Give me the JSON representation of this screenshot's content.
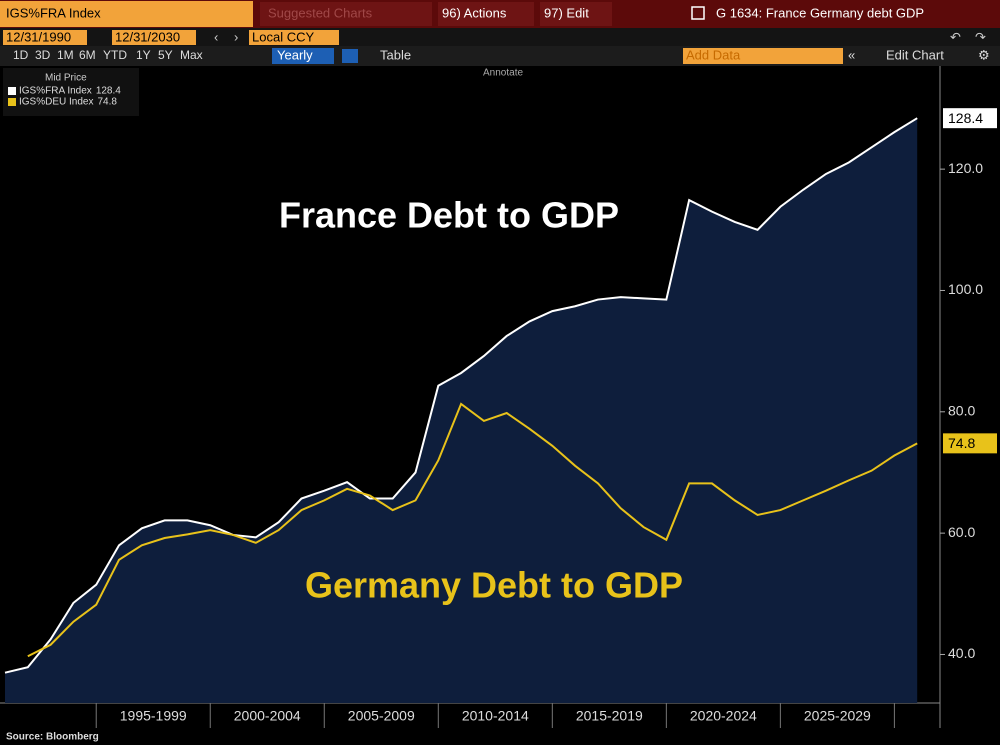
{
  "ui": {
    "security": "IGS%FRA Index",
    "suggested": "Suggested Charts",
    "actions": "96) Actions",
    "edit": "97) Edit",
    "chart_name": "G 1634: France Germany debt GDP",
    "start_date": "12/31/1990",
    "end_date": "12/31/2030",
    "currency": "Local CCY",
    "periods": [
      "1D",
      "3D",
      "1M",
      "6M",
      "YTD",
      "1Y",
      "5Y",
      "Max"
    ],
    "frequency": "Yearly",
    "table": "Table",
    "add_data": "Add Data",
    "edit_chart": "Edit Chart",
    "annotate": "Annotate"
  },
  "chart_data": {
    "type": "line",
    "legend_title": "Mid Price",
    "annotations": [
      "France Debt to GDP",
      "Germany Debt to GDP"
    ],
    "source": "Source: Bloomberg",
    "x": [
      1990,
      1991,
      1992,
      1993,
      1994,
      1995,
      1996,
      1997,
      1998,
      1999,
      2000,
      2001,
      2002,
      2003,
      2004,
      2005,
      2006,
      2007,
      2008,
      2009,
      2010,
      2011,
      2012,
      2013,
      2014,
      2015,
      2016,
      2017,
      2018,
      2019,
      2020,
      2021,
      2022,
      2023,
      2024,
      2025,
      2026,
      2027,
      2028,
      2029,
      2030
    ],
    "xlim": [
      1990,
      2031
    ],
    "xticks": [
      {
        "value": 1996.5,
        "label": "1995-1999"
      },
      {
        "value": 2001.5,
        "label": "2000-2004"
      },
      {
        "value": 2006.5,
        "label": "2005-2009"
      },
      {
        "value": 2011.5,
        "label": "2010-2014"
      },
      {
        "value": 2016.5,
        "label": "2015-2019"
      },
      {
        "value": 2021.5,
        "label": "2020-2024"
      },
      {
        "value": 2026.5,
        "label": "2025-2029"
      }
    ],
    "ylim": [
      32,
      137
    ],
    "yticks": [
      {
        "value": 40,
        "label": "40.0"
      },
      {
        "value": 60,
        "label": "60.0"
      },
      {
        "value": 80,
        "label": "80.0"
      },
      {
        "value": 100,
        "label": "100.0"
      },
      {
        "value": 120,
        "label": "120.0"
      }
    ],
    "series": [
      {
        "name": "IGS%FRA Index",
        "color": "#ffffff",
        "fill": "#0e1e3c",
        "values": [
          37.0,
          37.9,
          42.5,
          48.5,
          51.5,
          58.0,
          60.8,
          62.1,
          62.1,
          61.3,
          59.7,
          59.3,
          61.8,
          65.7,
          67.0,
          68.4,
          65.7,
          65.7,
          70.0,
          84.3,
          86.4,
          89.2,
          92.5,
          94.9,
          96.6,
          97.4,
          98.5,
          98.9,
          98.7,
          98.5,
          114.9,
          113.0,
          111.3,
          110.0,
          113.8,
          116.6,
          119.2,
          121.1,
          123.6,
          126.1,
          128.4
        ]
      },
      {
        "name": "IGS%DEU Index",
        "color": "#e8c21a",
        "values": [
          null,
          39.7,
          41.6,
          45.4,
          48.2,
          55.6,
          58.0,
          59.2,
          59.8,
          60.5,
          59.7,
          58.4,
          60.5,
          63.8,
          65.4,
          67.3,
          66.2,
          63.8,
          65.4,
          72.0,
          81.3,
          78.5,
          79.8,
          77.2,
          74.4,
          71.1,
          68.2,
          64.1,
          61.0,
          58.9,
          68.2,
          68.2,
          65.4,
          63.0,
          63.8,
          65.4,
          67.0,
          68.7,
          70.3,
          72.8,
          74.8
        ]
      }
    ]
  }
}
